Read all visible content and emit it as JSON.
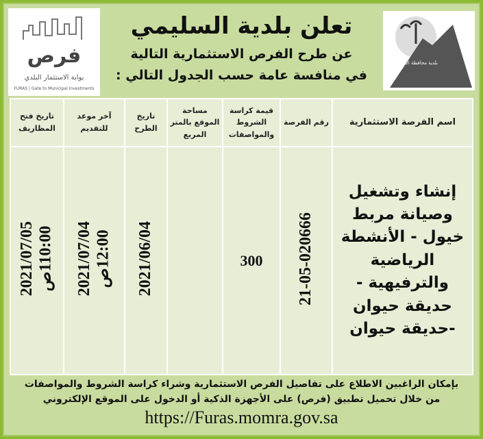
{
  "header": {
    "title": "تعلن بلدية السليمي",
    "subtitle_1": "عن طرح الفرص الاستثمارية التالية",
    "subtitle_2": "في منافسة عامة حسب الجدول التالي :"
  },
  "logos": {
    "furas_ar": "فرص",
    "furas_tag_ar": "بوابة الاستثمار البلدي",
    "furas_tag_en": "FURAS | Gate to Municipal Investments",
    "municipality": "بلدية محافظة السليمي"
  },
  "table": {
    "headers": [
      "اسم الفرصة الاستثمارية",
      "رقم الفرصة",
      "قيمة كراسة الشروط والمواصفات",
      "مساحة الموقع بالمتر المربع",
      "تاريخ الطرح",
      "آخر موعد للتقديم",
      "تاريخ فتح المظاريف"
    ],
    "rows": [
      {
        "name": "إنشاء وتشغيل وصيانة مربط خيول - الأنشطة الرياضية والترفيهية - حديقة حيوان -حديقة حيوان",
        "number": "21-05-020666",
        "price": "300",
        "area": "",
        "posting_date": "2021/06/04",
        "deadline_date": "2021/07/04",
        "deadline_time": "12:00ص",
        "opening_date": "2021/07/05",
        "opening_time": "110:00ص"
      }
    ]
  },
  "footer": {
    "line_1": "بإمكان الراغبين الاطلاع على تفاصيل الفرص الاستثمارية وشراء كراسة الشروط والمواصفات",
    "line_2": "من خلال تحميل تطبيق (فرص) على الأجهزة الذكية أو الدخول على الموقع الإلكتروني",
    "url": "https://Furas.momra.gov.sa"
  },
  "colors": {
    "border": "#8cba34",
    "background": "#c9dc9f",
    "table": "#e8eed6"
  }
}
